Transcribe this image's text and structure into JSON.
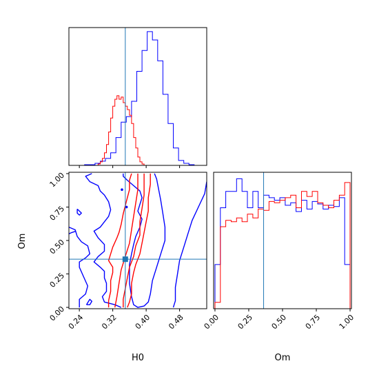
{
  "chart_data": {
    "type": "corner",
    "colors": {
      "blue": "#0000ff",
      "red": "#ff0000",
      "truth": "#1f77b4"
    },
    "parameters": [
      "H0",
      "Om"
    ],
    "truth": {
      "H0": 0.35,
      "Om": 0.36
    },
    "axes": {
      "H0": {
        "range": [
          0.215,
          0.545
        ],
        "ticks": [
          0.24,
          0.32,
          0.4,
          0.48
        ],
        "tick_labels": [
          "0.24",
          "0.32",
          "0.40",
          "0.48"
        ],
        "label": "H0"
      },
      "Om": {
        "range": [
          -0.01,
          1.01
        ],
        "ticks": [
          0.0,
          0.25,
          0.5,
          0.75,
          1.0
        ],
        "tick_labels": [
          "0.00",
          "0.25",
          "0.50",
          "0.75",
          "1.00"
        ],
        "label": "Om"
      }
    },
    "hist_H0": {
      "series": [
        {
          "name": "",
          "color": "#0000ff",
          "edges": [
            0.215,
            0.2275,
            0.24,
            0.2525,
            0.265,
            0.2775,
            0.29,
            0.3025,
            0.315,
            0.3275,
            0.34,
            0.3525,
            0.365,
            0.3775,
            0.39,
            0.4025,
            0.415,
            0.4275,
            0.44,
            0.4525,
            0.465,
            0.4775,
            0.49,
            0.5025,
            0.515,
            0.5275
          ],
          "counts": [
            0,
            0,
            0,
            1,
            1,
            3,
            6,
            10,
            18,
            40,
            62,
            70,
            92,
            135,
            165,
            192,
            180,
            150,
            102,
            60,
            25,
            7,
            3,
            1,
            0
          ]
        },
        {
          "name": "",
          "color": "#ff0000",
          "edges": [
            0.28,
            0.285,
            0.29,
            0.295,
            0.3,
            0.305,
            0.31,
            0.315,
            0.32,
            0.325,
            0.33,
            0.335,
            0.34,
            0.345,
            0.35,
            0.355,
            0.36,
            0.365,
            0.37,
            0.375,
            0.38,
            0.385,
            0.39,
            0.395,
            0.4
          ],
          "counts": [
            0,
            2,
            5,
            10,
            18,
            30,
            48,
            68,
            85,
            95,
            100,
            95,
            98,
            90,
            85,
            80,
            72,
            60,
            40,
            25,
            12,
            5,
            2,
            0
          ]
        }
      ]
    },
    "hist_Om": {
      "series": [
        {
          "name": "",
          "color": "#0000ff",
          "edges": [
            0.0,
            0.04,
            0.08,
            0.12,
            0.16,
            0.2,
            0.24,
            0.28,
            0.32,
            0.36,
            0.4,
            0.44,
            0.48,
            0.52,
            0.56,
            0.6,
            0.64,
            0.68,
            0.72,
            0.76,
            0.8,
            0.84,
            0.88,
            0.92,
            0.96,
            1.0
          ],
          "counts": [
            0.35,
            0.8,
            0.93,
            0.93,
            1.03,
            0.93,
            0.8,
            0.93,
            0.8,
            0.9,
            0.88,
            0.86,
            0.88,
            0.82,
            0.84,
            0.77,
            0.86,
            0.79,
            0.85,
            0.83,
            0.79,
            0.82,
            0.81,
            0.88,
            0.35
          ]
        },
        {
          "name": "",
          "color": "#ff0000",
          "edges": [
            0.0,
            0.04,
            0.08,
            0.12,
            0.16,
            0.2,
            0.24,
            0.28,
            0.32,
            0.36,
            0.4,
            0.44,
            0.48,
            0.52,
            0.56,
            0.6,
            0.64,
            0.68,
            0.72,
            0.76,
            0.8,
            0.84,
            0.88,
            0.92,
            0.96,
            1.0
          ],
          "counts": [
            0.05,
            0.65,
            0.7,
            0.69,
            0.72,
            0.69,
            0.75,
            0.72,
            0.79,
            0.78,
            0.85,
            0.84,
            0.86,
            0.88,
            0.9,
            0.8,
            0.93,
            0.89,
            0.93,
            0.84,
            0.82,
            0.8,
            0.86,
            0.9,
            1.0
          ]
        }
      ]
    },
    "contours": [
      {
        "color": "#0000ff",
        "points": [
          [
            0.27,
            1.0
          ],
          [
            0.255,
            0.98
          ],
          [
            0.265,
            0.94
          ],
          [
            0.285,
            0.91
          ],
          [
            0.29,
            0.87
          ],
          [
            0.3,
            0.84
          ],
          [
            0.31,
            0.79
          ],
          [
            0.315,
            0.73
          ],
          [
            0.31,
            0.68
          ],
          [
            0.29,
            0.6
          ],
          [
            0.275,
            0.57
          ],
          [
            0.285,
            0.52
          ],
          [
            0.3,
            0.47
          ],
          [
            0.3,
            0.42
          ],
          [
            0.285,
            0.38
          ],
          [
            0.275,
            0.34
          ],
          [
            0.29,
            0.3
          ],
          [
            0.3,
            0.27
          ],
          [
            0.3,
            0.22
          ],
          [
            0.305,
            0.18
          ],
          [
            0.305,
            0.12
          ],
          [
            0.295,
            0.08
          ],
          [
            0.3,
            0.04
          ],
          [
            0.325,
            0.02
          ],
          [
            0.34,
            0.0
          ]
        ]
      },
      {
        "color": "#0000ff",
        "points": [
          [
            0.345,
            1.0
          ],
          [
            0.345,
            0.98
          ],
          [
            0.355,
            0.95
          ],
          [
            0.37,
            0.91
          ],
          [
            0.385,
            0.87
          ],
          [
            0.39,
            0.82
          ],
          [
            0.385,
            0.77
          ],
          [
            0.38,
            0.72
          ],
          [
            0.39,
            0.66
          ],
          [
            0.385,
            0.6
          ],
          [
            0.375,
            0.53
          ],
          [
            0.37,
            0.47
          ],
          [
            0.365,
            0.4
          ],
          [
            0.36,
            0.32
          ],
          [
            0.36,
            0.25
          ],
          [
            0.36,
            0.18
          ],
          [
            0.365,
            0.08
          ],
          [
            0.37,
            0.02
          ],
          [
            0.38,
            0.0
          ],
          [
            0.395,
            0.01
          ],
          [
            0.405,
            0.04
          ],
          [
            0.41,
            0.1
          ],
          [
            0.415,
            0.2
          ],
          [
            0.425,
            0.3
          ],
          [
            0.435,
            0.4
          ],
          [
            0.445,
            0.5
          ],
          [
            0.445,
            0.6
          ],
          [
            0.44,
            0.7
          ],
          [
            0.435,
            0.8
          ],
          [
            0.43,
            0.88
          ],
          [
            0.425,
            0.96
          ],
          [
            0.42,
            1.0
          ]
        ]
      },
      {
        "color": "#0000ff",
        "points": [
          [
            0.465,
            0.0
          ],
          [
            0.47,
            0.05
          ],
          [
            0.47,
            0.15
          ],
          [
            0.475,
            0.25
          ],
          [
            0.48,
            0.35
          ],
          [
            0.49,
            0.45
          ],
          [
            0.5,
            0.55
          ],
          [
            0.51,
            0.65
          ],
          [
            0.525,
            0.75
          ],
          [
            0.54,
            0.85
          ],
          [
            0.545,
            0.94
          ]
        ]
      },
      {
        "color": "#0000ff",
        "points": [
          [
            0.24,
            0.0
          ],
          [
            0.24,
            0.06
          ],
          [
            0.255,
            0.1
          ],
          [
            0.26,
            0.16
          ],
          [
            0.25,
            0.23
          ],
          [
            0.24,
            0.3
          ],
          [
            0.24,
            0.34
          ],
          [
            0.255,
            0.37
          ],
          [
            0.265,
            0.4
          ],
          [
            0.26,
            0.46
          ],
          [
            0.245,
            0.49
          ],
          [
            0.235,
            0.53
          ],
          [
            0.23,
            0.58
          ],
          [
            0.215,
            0.6
          ]
        ]
      },
      {
        "color": "#0000ff",
        "points": [
          [
            0.232,
            0.57
          ],
          [
            0.222,
            0.56
          ],
          [
            0.215,
            0.55
          ]
        ]
      },
      {
        "color": "#0000ff",
        "points": [
          [
            0.235,
            0.735
          ],
          [
            0.24,
            0.72
          ],
          [
            0.245,
            0.705
          ],
          [
            0.24,
            0.69
          ],
          [
            0.235,
            0.705
          ],
          [
            0.235,
            0.735
          ]
        ]
      },
      {
        "color": "#0000ff",
        "points": [
          [
            0.257,
            0.02
          ],
          [
            0.265,
            0.06
          ],
          [
            0.27,
            0.045
          ],
          [
            0.265,
            0.02
          ],
          [
            0.257,
            0.02
          ]
        ]
      },
      {
        "color": "#ff0000",
        "points": [
          [
            0.31,
            0.0
          ],
          [
            0.31,
            0.05
          ],
          [
            0.315,
            0.12
          ],
          [
            0.315,
            0.2
          ],
          [
            0.32,
            0.26
          ],
          [
            0.32,
            0.3
          ],
          [
            0.31,
            0.35
          ],
          [
            0.315,
            0.4
          ],
          [
            0.32,
            0.45
          ],
          [
            0.33,
            0.52
          ],
          [
            0.335,
            0.56
          ],
          [
            0.34,
            0.62
          ],
          [
            0.345,
            0.7
          ],
          [
            0.35,
            0.76
          ],
          [
            0.355,
            0.82
          ],
          [
            0.36,
            0.88
          ],
          [
            0.36,
            0.95
          ],
          [
            0.365,
            1.0
          ]
        ]
      },
      {
        "color": "#ff0000",
        "points": [
          [
            0.325,
            0.0
          ],
          [
            0.33,
            0.08
          ],
          [
            0.335,
            0.18
          ],
          [
            0.34,
            0.28
          ],
          [
            0.35,
            0.38
          ],
          [
            0.36,
            0.48
          ],
          [
            0.365,
            0.58
          ],
          [
            0.37,
            0.68
          ],
          [
            0.375,
            0.78
          ],
          [
            0.38,
            0.88
          ],
          [
            0.38,
            1.0
          ]
        ]
      },
      {
        "color": "#ff0000",
        "points": [
          [
            0.345,
            0.0
          ],
          [
            0.345,
            0.06
          ],
          [
            0.35,
            0.14
          ],
          [
            0.355,
            0.22
          ],
          [
            0.36,
            0.3
          ],
          [
            0.37,
            0.38
          ],
          [
            0.375,
            0.46
          ],
          [
            0.385,
            0.54
          ],
          [
            0.385,
            0.64
          ],
          [
            0.39,
            0.74
          ],
          [
            0.395,
            0.84
          ],
          [
            0.395,
            0.92
          ],
          [
            0.395,
            1.0
          ]
        ]
      },
      {
        "color": "#ff0000",
        "points": [
          [
            0.355,
            0.0
          ],
          [
            0.36,
            0.04
          ],
          [
            0.365,
            0.1
          ],
          [
            0.365,
            0.18
          ],
          [
            0.37,
            0.26
          ],
          [
            0.375,
            0.32
          ],
          [
            0.385,
            0.4
          ],
          [
            0.39,
            0.48
          ],
          [
            0.395,
            0.56
          ],
          [
            0.4,
            0.64
          ],
          [
            0.405,
            0.72
          ],
          [
            0.405,
            0.82
          ],
          [
            0.41,
            0.92
          ],
          [
            0.41,
            1.0
          ]
        ]
      }
    ],
    "dots": [
      {
        "color": "#0000ff",
        "points": [
          [
            0.342,
            0.88
          ],
          [
            0.353,
            0.75
          ]
        ]
      }
    ]
  }
}
